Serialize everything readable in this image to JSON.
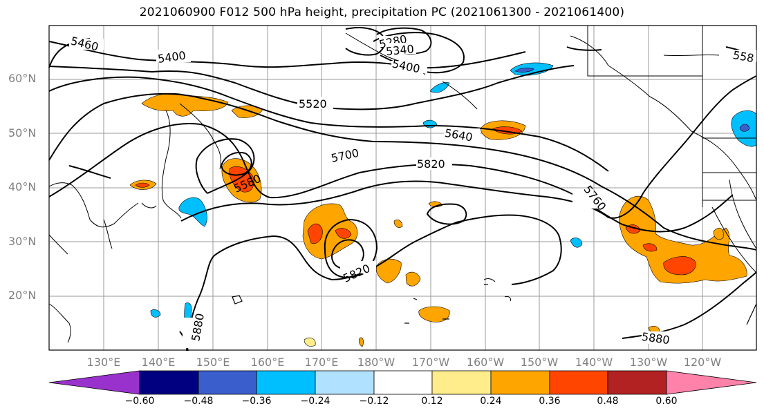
{
  "title": "2021060900 F012 500 hPa height, precipitation PC (2021061300 - 2021061400)",
  "lat_labels": [
    "60°N",
    "50°N",
    "40°N",
    "30°N",
    "20°N"
  ],
  "lon_labels": [
    "130°E",
    "140°E",
    "150°E",
    "160°E",
    "170°E",
    "180°W",
    "170°W",
    "160°W",
    "150°W",
    "140°W",
    "130°W",
    "120°W"
  ],
  "contour_labels": [
    "5460",
    "5400",
    "5280",
    "5340",
    "5400",
    "5520",
    "5580",
    "5640",
    "5700",
    "5820",
    "5760",
    "5820",
    "5880",
    "5880",
    "558"
  ],
  "colorbar": {
    "tick_labels": [
      "−0.60",
      "−0.48",
      "−0.36",
      "−0.24",
      "−0.12",
      "0.12",
      "0.24",
      "0.36",
      "0.48",
      "0.60"
    ],
    "colors": [
      "#9932cc",
      "#000080",
      "#3a5fcd",
      "#00bfff",
      "#b0e2ff",
      "#ffffff",
      "#ffec8b",
      "#ffa500",
      "#ff4500",
      "#b22222",
      "#ff82ab"
    ]
  },
  "colors": {
    "land": "#000000",
    "grid": "#9a9a9a",
    "tick_text": "#808080"
  }
}
